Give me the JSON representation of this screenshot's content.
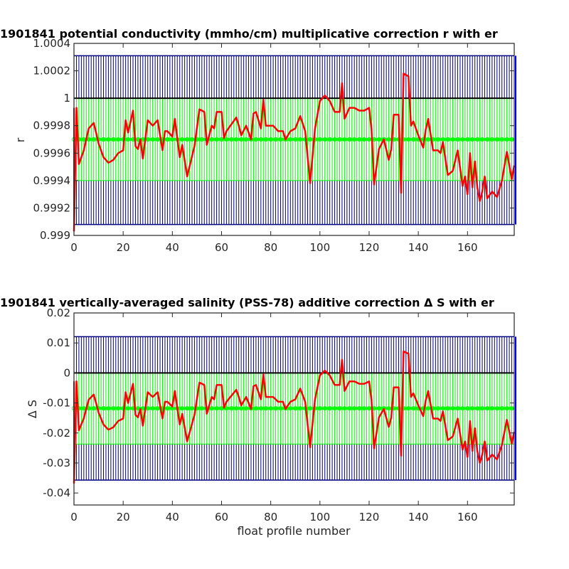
{
  "chart_data": [
    {
      "type": "line",
      "title": "1901841 potential conductivity (mmho/cm) multiplicative correction r with er",
      "xlabel": "",
      "ylabel": "r",
      "xlim": [
        0,
        179
      ],
      "ylim": [
        0.999,
        1.0004
      ],
      "xticks": [
        0,
        20,
        40,
        60,
        80,
        100,
        120,
        140,
        160
      ],
      "xtick_labels": [
        "0",
        "20",
        "40",
        "60",
        "80",
        "100",
        "120",
        "140",
        "160"
      ],
      "yticks": [
        0.999,
        0.9992,
        0.9994,
        0.9996,
        0.9998,
        1,
        1.0002,
        1.0004
      ],
      "ytick_labels": [
        "0.999",
        "0.9992",
        "0.9994",
        "0.9996",
        "0.9998",
        "1",
        "1.0002",
        "1.0004"
      ],
      "grid": false,
      "reference_line": 1,
      "green_error": {
        "center": 0.9997,
        "lower": 0.9994,
        "upper": 1.0
      },
      "blue_error": {
        "lower": 0.99908,
        "upper": 1.00031
      },
      "colors": {
        "series": "#ff0000",
        "green": "#00ff00",
        "blue": "#000080",
        "reference": "#000000"
      },
      "series": [
        {
          "x": [
            0,
            1,
            2,
            4,
            6,
            8,
            9,
            10,
            12,
            14,
            16,
            18,
            20,
            21,
            22,
            24,
            25,
            26,
            27,
            28,
            30,
            32,
            34,
            36,
            37,
            38,
            40,
            41,
            43,
            44,
            46,
            49,
            51,
            53,
            54,
            56,
            57,
            58,
            60,
            61,
            62,
            64,
            66,
            67,
            68,
            70,
            72,
            73,
            74,
            76,
            77,
            78,
            79,
            81,
            83,
            85,
            86,
            88,
            90,
            92,
            94,
            96,
            98,
            100,
            102,
            104,
            106,
            108,
            109,
            110,
            112,
            114,
            116,
            118,
            120,
            121,
            122,
            124,
            126,
            128,
            129,
            130,
            132,
            133,
            134,
            136,
            137,
            138,
            140,
            142,
            143,
            144,
            146,
            148,
            149,
            150,
            152,
            154,
            156,
            158,
            159,
            160,
            161,
            162,
            163,
            164,
            165,
            166,
            167,
            168,
            170,
            172,
            174,
            176,
            178,
            179
          ],
          "y": [
            0.99903,
            0.99993,
            0.99952,
            0.99962,
            0.99978,
            0.99982,
            0.99975,
            0.99967,
            0.99957,
            0.99953,
            0.99955,
            0.9996,
            0.99962,
            0.99984,
            0.99975,
            0.99991,
            0.99965,
            0.99963,
            0.9997,
            0.99956,
            0.99984,
            0.9998,
            0.99984,
            0.99962,
            0.99976,
            0.99976,
            0.99972,
            0.99985,
            0.99957,
            0.99966,
            0.99943,
            0.99965,
            0.99992,
            0.9999,
            0.99966,
            0.9998,
            0.99978,
            0.9999,
            0.9999,
            0.99971,
            0.99976,
            0.99981,
            0.99986,
            0.9998,
            0.99973,
            0.9998,
            0.9997,
            0.99989,
            0.9999,
            0.99978,
            0.99999,
            0.9998,
            0.9998,
            0.9998,
            0.99976,
            0.99976,
            0.9997,
            0.99976,
            0.99978,
            0.99987,
            0.99976,
            0.99938,
            0.99978,
            0.99998,
            1.00002,
            0.99998,
            0.9999,
            0.9999,
            1.00011,
            0.99985,
            0.99993,
            0.99993,
            0.99991,
            0.99991,
            0.99993,
            0.99977,
            0.99937,
            0.99963,
            0.9997,
            0.99955,
            0.99963,
            0.99988,
            0.99988,
            0.99931,
            1.00018,
            1.00016,
            0.9998,
            0.99983,
            0.99973,
            0.99964,
            0.99977,
            0.99985,
            0.99962,
            0.99962,
            0.9996,
            0.99968,
            0.99944,
            0.99947,
            0.99962,
            0.99936,
            0.99943,
            0.9993,
            0.9996,
            0.99935,
            0.99954,
            0.99935,
            0.99925,
            0.99932,
            0.99943,
            0.99927,
            0.99932,
            0.99928,
            0.9994,
            0.99961,
            0.99941,
            0.99951
          ]
        }
      ]
    },
    {
      "type": "line",
      "title": "1901841 vertically-averaged salinity (PSS-78) additive correction Δ S with er",
      "xlabel": "float profile number",
      "ylabel": "Δ S",
      "xlim": [
        0,
        179
      ],
      "ylim": [
        -0.044,
        0.02
      ],
      "xticks": [
        0,
        20,
        40,
        60,
        80,
        100,
        120,
        140,
        160
      ],
      "xtick_labels": [
        "0",
        "20",
        "40",
        "60",
        "80",
        "100",
        "120",
        "140",
        "160"
      ],
      "yticks": [
        -0.04,
        -0.03,
        -0.02,
        -0.01,
        0,
        0.01,
        0.02
      ],
      "ytick_labels": [
        "-0.04",
        "-0.03",
        "-0.02",
        "-0.01",
        "0",
        "0.01",
        "0.02"
      ],
      "grid": false,
      "reference_line": 0,
      "green_error": {
        "center": -0.0118,
        "lower": -0.0237,
        "upper": 0.0
      },
      "blue_error": {
        "lower": -0.0357,
        "upper": 0.0121
      },
      "colors": {
        "series": "#ff0000",
        "green": "#00ff00",
        "blue": "#000080",
        "reference": "#000000"
      },
      "series": [
        {
          "x": [
            0,
            1,
            2,
            4,
            6,
            8,
            9,
            10,
            12,
            14,
            16,
            18,
            20,
            21,
            22,
            24,
            25,
            26,
            27,
            28,
            30,
            32,
            34,
            36,
            37,
            38,
            40,
            41,
            43,
            44,
            46,
            49,
            51,
            53,
            54,
            56,
            57,
            58,
            60,
            61,
            62,
            64,
            66,
            67,
            68,
            70,
            72,
            73,
            74,
            76,
            77,
            78,
            79,
            81,
            83,
            85,
            86,
            88,
            90,
            92,
            94,
            96,
            98,
            100,
            102,
            104,
            106,
            108,
            109,
            110,
            112,
            114,
            116,
            118,
            120,
            121,
            122,
            124,
            126,
            128,
            129,
            130,
            132,
            133,
            134,
            136,
            137,
            138,
            140,
            142,
            143,
            144,
            146,
            148,
            149,
            150,
            152,
            154,
            156,
            158,
            159,
            160,
            161,
            162,
            163,
            164,
            165,
            166,
            167,
            168,
            170,
            172,
            174,
            176,
            178,
            179
          ],
          "y": [
            -0.0368,
            -0.0028,
            -0.0191,
            -0.0151,
            -0.0089,
            -0.0072,
            -0.01,
            -0.0132,
            -0.0172,
            -0.0189,
            -0.0181,
            -0.016,
            -0.0152,
            -0.0064,
            -0.01,
            -0.0036,
            -0.014,
            -0.0148,
            -0.012,
            -0.0176,
            -0.0064,
            -0.008,
            -0.0064,
            -0.0152,
            -0.0096,
            -0.0096,
            -0.0112,
            -0.006,
            -0.0172,
            -0.0136,
            -0.0228,
            -0.014,
            -0.0032,
            -0.004,
            -0.0136,
            -0.008,
            -0.0088,
            -0.004,
            -0.004,
            -0.0116,
            -0.0096,
            -0.0076,
            -0.0056,
            -0.008,
            -0.0108,
            -0.008,
            -0.012,
            -0.0044,
            -0.004,
            -0.0088,
            -0.0004,
            -0.008,
            -0.008,
            -0.008,
            -0.0096,
            -0.0096,
            -0.012,
            -0.0096,
            -0.0088,
            -0.0052,
            -0.0096,
            -0.0248,
            -0.0088,
            -0.0008,
            0.0008,
            -0.0008,
            -0.004,
            -0.004,
            0.0044,
            -0.006,
            -0.0028,
            -0.0028,
            -0.0036,
            -0.0036,
            -0.0028,
            -0.0092,
            -0.0252,
            -0.0148,
            -0.012,
            -0.018,
            -0.0148,
            -0.0048,
            -0.0048,
            -0.0276,
            0.0072,
            0.0064,
            -0.008,
            -0.0068,
            -0.0108,
            -0.0144,
            -0.0092,
            -0.006,
            -0.0152,
            -0.0152,
            -0.016,
            -0.0128,
            -0.0224,
            -0.0212,
            -0.0152,
            -0.0256,
            -0.0228,
            -0.028,
            -0.016,
            -0.026,
            -0.0184,
            -0.026,
            -0.03,
            -0.0272,
            -0.0228,
            -0.0292,
            -0.0272,
            -0.0288,
            -0.024,
            -0.0156,
            -0.0236,
            -0.0196
          ]
        }
      ]
    }
  ]
}
